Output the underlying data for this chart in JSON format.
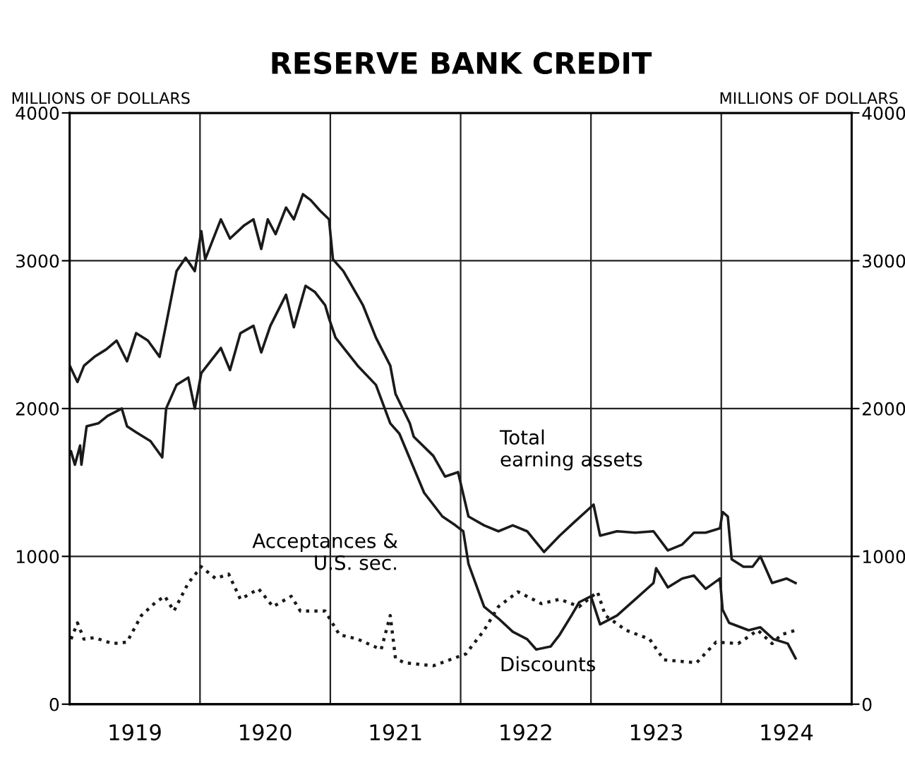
{
  "chart_data": {
    "type": "line",
    "title": "RESERVE BANK CREDIT",
    "ylabel": "MILLIONS OF DOLLARS",
    "y2label": "MILLIONS OF DOLLARS",
    "xlim": [
      1919,
      1925
    ],
    "ylim": [
      0,
      4000
    ],
    "y2lim": [
      0,
      4000
    ],
    "xticks": [
      {
        "value": 1919,
        "label": null
      },
      {
        "value": 1919.5,
        "label": "1919"
      },
      {
        "value": 1920,
        "label": null
      },
      {
        "value": 1920.5,
        "label": "1920"
      },
      {
        "value": 1921,
        "label": null
      },
      {
        "value": 1921.5,
        "label": "1921"
      },
      {
        "value": 1922,
        "label": null
      },
      {
        "value": 1922.5,
        "label": "1922"
      },
      {
        "value": 1923,
        "label": null
      },
      {
        "value": 1923.5,
        "label": "1923"
      },
      {
        "value": 1924,
        "label": null
      },
      {
        "value": 1924.5,
        "label": "1924"
      },
      {
        "value": 1925,
        "label": null
      }
    ],
    "yticks": [
      0,
      1000,
      2000,
      3000,
      4000
    ],
    "y2ticks": [
      0,
      1000,
      2000,
      3000,
      4000
    ],
    "grid": true,
    "legend": false,
    "series": [
      {
        "color": "#1a1a1a",
        "line_style": "solid",
        "x": [
          1919.0,
          1919.06,
          1919.11,
          1919.19,
          1919.28,
          1919.36,
          1919.44,
          1919.51,
          1919.6,
          1919.69,
          1919.74,
          1919.82,
          1919.89,
          1919.96,
          1920.01,
          1920.04,
          1920.16,
          1920.23,
          1920.34,
          1920.41,
          1920.47,
          1920.52,
          1920.58,
          1920.66,
          1920.72,
          1920.79,
          1920.85,
          1920.92,
          1920.99,
          1921.02,
          1921.1,
          1921.25,
          1921.35,
          1921.46,
          1921.5,
          1921.61,
          1921.64,
          1921.79,
          1921.88,
          1921.98,
          1922.06,
          1922.18,
          1922.29,
          1922.4,
          1922.51,
          1922.64,
          1922.76,
          1922.87,
          1923.02,
          1923.07,
          1923.2,
          1923.34,
          1923.48,
          1923.59,
          1923.7,
          1923.79,
          1923.88,
          1923.99,
          1924.01,
          1924.05,
          1924.08,
          1924.17,
          1924.24,
          1924.3,
          1924.39,
          1924.5,
          1924.57
        ],
        "values": [
          2290,
          2180,
          2290,
          2350,
          2400,
          2460,
          2320,
          2510,
          2460,
          2350,
          2570,
          2930,
          3020,
          2930,
          3200,
          3010,
          3280,
          3150,
          3240,
          3280,
          3080,
          3280,
          3180,
          3360,
          3280,
          3450,
          3410,
          3340,
          3280,
          3010,
          2930,
          2700,
          2480,
          2290,
          2100,
          1900,
          1810,
          1680,
          1540,
          1570,
          1270,
          1210,
          1170,
          1210,
          1170,
          1030,
          1140,
          1230,
          1350,
          1140,
          1170,
          1160,
          1170,
          1040,
          1080,
          1160,
          1160,
          1190,
          1300,
          1270,
          980,
          930,
          930,
          1000,
          820,
          850,
          820
        ]
      },
      {
        "color": "#1a1a1a",
        "line_style": "solid",
        "x": [
          1919.01,
          1919.04,
          1919.08,
          1919.09,
          1919.13,
          1919.22,
          1919.29,
          1919.4,
          1919.44,
          1919.51,
          1919.62,
          1919.71,
          1919.74,
          1919.82,
          1919.91,
          1919.96,
          1920.01,
          1920.16,
          1920.23,
          1920.31,
          1920.41,
          1920.47,
          1920.54,
          1920.66,
          1920.72,
          1920.81,
          1920.88,
          1920.96,
          1920.99,
          1921.04,
          1921.21,
          1921.35,
          1921.46,
          1921.53,
          1921.72,
          1921.86,
          1921.96,
          1922.02,
          1922.06,
          1922.18,
          1922.29,
          1922.4,
          1922.51,
          1922.58,
          1922.69,
          1922.76,
          1922.85,
          1922.91,
          1923.0,
          1923.07,
          1923.2,
          1923.34,
          1923.48,
          1923.5,
          1923.59,
          1923.7,
          1923.79,
          1923.88,
          1923.99,
          1924.01,
          1924.06,
          1924.21,
          1924.3,
          1924.4,
          1924.51,
          1924.57
        ],
        "values": [
          1710,
          1620,
          1750,
          1620,
          1880,
          1900,
          1950,
          2000,
          1880,
          1840,
          1780,
          1670,
          2000,
          2160,
          2210,
          2000,
          2240,
          2410,
          2260,
          2510,
          2560,
          2380,
          2560,
          2770,
          2550,
          2830,
          2790,
          2700,
          2610,
          2480,
          2290,
          2160,
          1900,
          1830,
          1430,
          1270,
          1210,
          1170,
          950,
          660,
          580,
          490,
          440,
          370,
          390,
          470,
          600,
          690,
          730,
          540,
          600,
          710,
          820,
          920,
          790,
          850,
          870,
          780,
          850,
          640,
          550,
          500,
          520,
          440,
          410,
          310
        ]
      },
      {
        "color": "#1a1a1a",
        "line_style": "dotted",
        "x": [
          1919.01,
          1919.06,
          1919.11,
          1919.19,
          1919.33,
          1919.44,
          1919.55,
          1919.66,
          1919.73,
          1919.8,
          1919.91,
          1920.01,
          1920.12,
          1920.22,
          1920.31,
          1920.45,
          1920.56,
          1920.7,
          1920.77,
          1920.96,
          1921.07,
          1921.21,
          1921.39,
          1921.46,
          1921.5,
          1921.57,
          1921.79,
          1922.04,
          1922.18,
          1922.29,
          1922.44,
          1922.62,
          1922.76,
          1922.91,
          1923.05,
          1923.11,
          1923.27,
          1923.45,
          1923.56,
          1923.81,
          1923.96,
          1924.13,
          1924.28,
          1924.39,
          1924.46,
          1924.57
        ],
        "values": [
          440,
          550,
          440,
          450,
          410,
          420,
          600,
          690,
          730,
          630,
          820,
          930,
          850,
          880,
          710,
          780,
          660,
          730,
          630,
          630,
          470,
          440,
          370,
          600,
          310,
          280,
          260,
          340,
          500,
          660,
          760,
          680,
          710,
          660,
          760,
          600,
          500,
          440,
          300,
          280,
          420,
          410,
          500,
          410,
          470,
          500
        ]
      }
    ],
    "annotations": [
      "Total\nearning assets",
      "Acceptances &\nU.S. sec.",
      "Discounts"
    ]
  }
}
